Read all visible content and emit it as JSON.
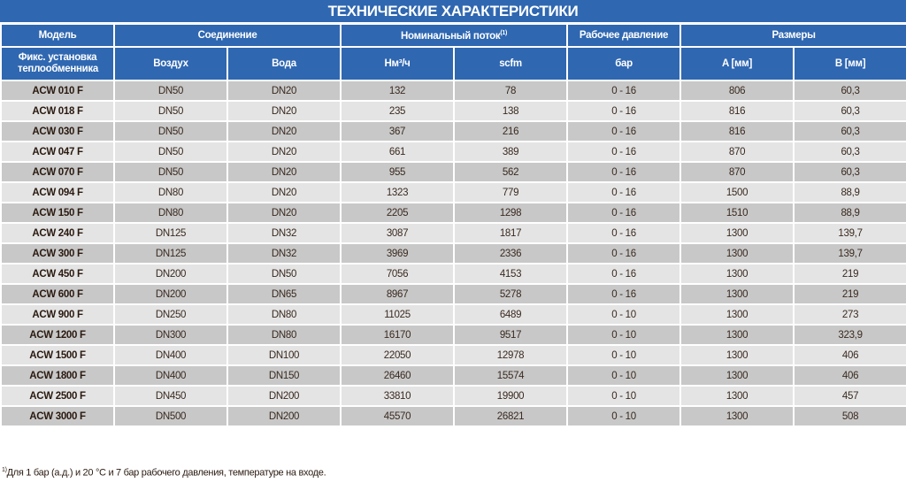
{
  "title": "ТЕХНИЧЕСКИЕ ХАРАКТЕРИСТИКИ",
  "header": {
    "model": "Модель",
    "connection": "Соединение",
    "flow": "Номинальный поток",
    "flow_note": "(1)",
    "pressure": "Рабочее давление",
    "dimensions": "Размеры",
    "model_sub": "Фикс. установка теплообменника",
    "air": "Воздух",
    "water": "Вода",
    "nm3h": "Нм³/ч",
    "scfm": "scfm",
    "bar": "бар",
    "a_mm": "A [мм]",
    "b_mm": "B [мм]"
  },
  "rows": [
    [
      "ACW 010 F",
      "DN50",
      "DN20",
      "132",
      "78",
      "0 - 16",
      "806",
      "60,3"
    ],
    [
      "ACW 018 F",
      "DN50",
      "DN20",
      "235",
      "138",
      "0 - 16",
      "816",
      "60,3"
    ],
    [
      "ACW 030 F",
      "DN50",
      "DN20",
      "367",
      "216",
      "0 - 16",
      "816",
      "60,3"
    ],
    [
      "ACW 047 F",
      "DN50",
      "DN20",
      "661",
      "389",
      "0 - 16",
      "870",
      "60,3"
    ],
    [
      "ACW 070 F",
      "DN50",
      "DN20",
      "955",
      "562",
      "0 - 16",
      "870",
      "60,3"
    ],
    [
      "ACW 094 F",
      "DN80",
      "DN20",
      "1323",
      "779",
      "0 - 16",
      "1500",
      "88,9"
    ],
    [
      "ACW 150 F",
      "DN80",
      "DN20",
      "2205",
      "1298",
      "0 - 16",
      "1510",
      "88,9"
    ],
    [
      "ACW 240 F",
      "DN125",
      "DN32",
      "3087",
      "1817",
      "0 - 16",
      "1300",
      "139,7"
    ],
    [
      "ACW 300 F",
      "DN125",
      "DN32",
      "3969",
      "2336",
      "0 - 16",
      "1300",
      "139,7"
    ],
    [
      "ACW 450 F",
      "DN200",
      "DN50",
      "7056",
      "4153",
      "0 - 16",
      "1300",
      "219"
    ],
    [
      "ACW 600 F",
      "DN200",
      "DN65",
      "8967",
      "5278",
      "0 - 16",
      "1300",
      "219"
    ],
    [
      "ACW 900 F",
      "DN250",
      "DN80",
      "11025",
      "6489",
      "0 - 10",
      "1300",
      "273"
    ],
    [
      "ACW 1200 F",
      "DN300",
      "DN80",
      "16170",
      "9517",
      "0 - 10",
      "1300",
      "323,9"
    ],
    [
      "ACW 1500 F",
      "DN400",
      "DN100",
      "22050",
      "12978",
      "0 - 10",
      "1300",
      "406"
    ],
    [
      "ACW 1800 F",
      "DN400",
      "DN150",
      "26460",
      "15574",
      "0 - 10",
      "1300",
      "406"
    ],
    [
      "ACW 2500 F",
      "DN450",
      "DN200",
      "33810",
      "19900",
      "0 - 10",
      "1300",
      "457"
    ],
    [
      "ACW 3000 F",
      "DN500",
      "DN200",
      "45570",
      "26821",
      "0 - 10",
      "1300",
      "508"
    ]
  ],
  "footnote": {
    "mark": "1)",
    "text": "Для 1 бар (а.д.) и 20 °C и 7 бар рабочего давления, температуре на входе."
  },
  "colors": {
    "header_bg": "#2f67b1",
    "row_dark": "#c8c8c8",
    "row_light": "#e4e4e4"
  }
}
